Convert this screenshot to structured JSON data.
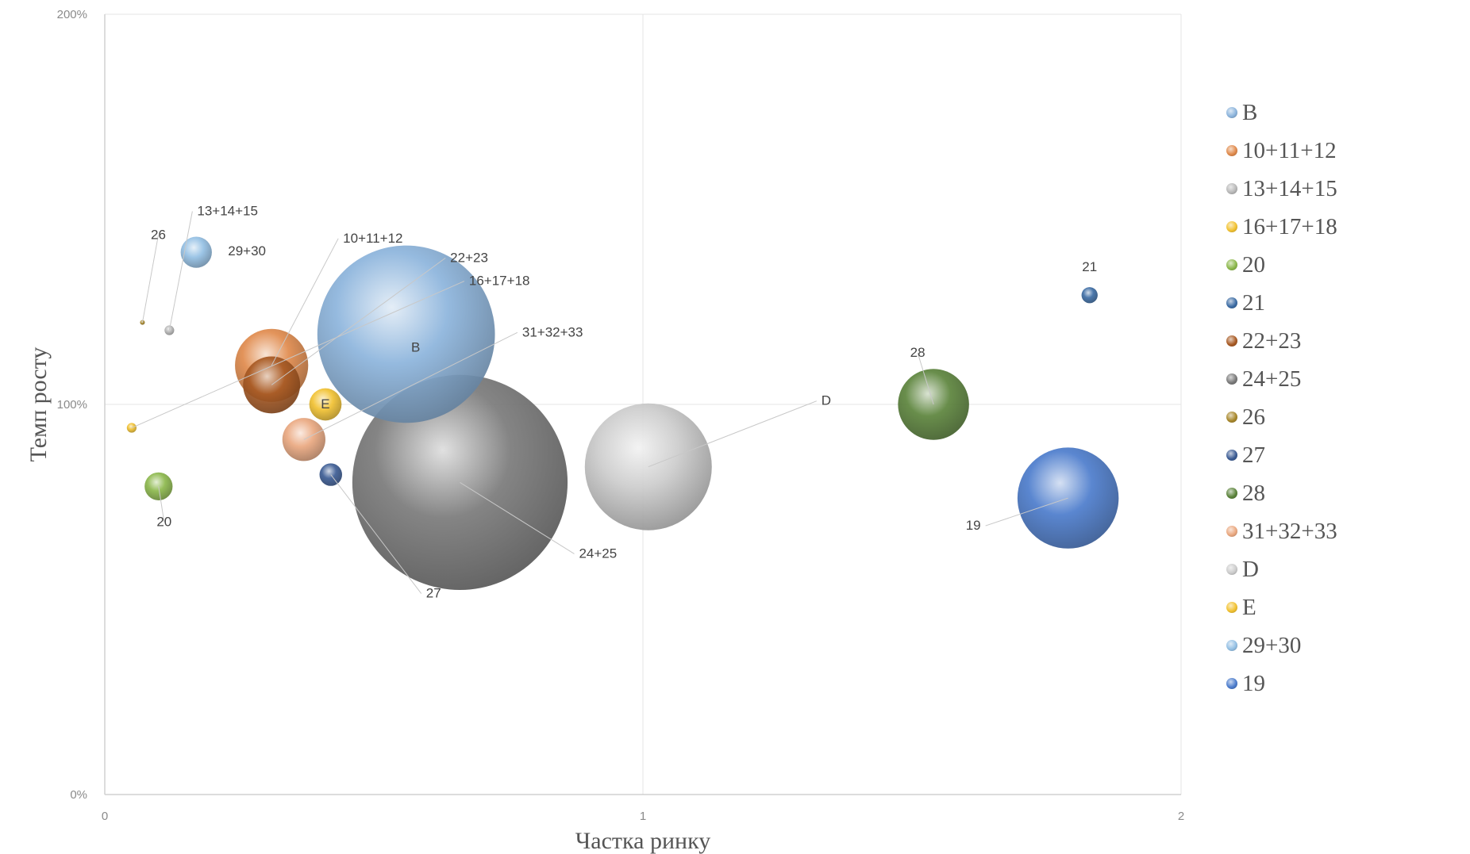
{
  "chart_data": {
    "type": "bubble",
    "xlabel": "Частка ринку",
    "ylabel": "Темп росту",
    "xlim": [
      0,
      2
    ],
    "ylim": [
      0,
      200
    ],
    "x_ticks": [
      "0",
      "1",
      "2"
    ],
    "y_ticks": [
      "0%",
      "100%",
      "200%"
    ],
    "grid": true,
    "legend_position": "right",
    "series": [
      {
        "name": "B",
        "x": 0.56,
        "y": 118,
        "size": 0.165,
        "color": "#8cb4dc",
        "label": "B"
      },
      {
        "name": "10+11+12",
        "x": 0.31,
        "y": 110,
        "size": 0.068,
        "color": "#e08a4c",
        "label": "10+11+12"
      },
      {
        "name": "13+14+15",
        "x": 0.12,
        "y": 119,
        "size": 0.009,
        "color": "#b8b8b8",
        "label": "13+14+15"
      },
      {
        "name": "16+17+18",
        "x": 0.05,
        "y": 94,
        "size": 0.009,
        "color": "#f2c232",
        "label": "16+17+18"
      },
      {
        "name": "20",
        "x": 0.1,
        "y": 79,
        "size": 0.026,
        "color": "#8cb84c",
        "label": "20"
      },
      {
        "name": "21",
        "x": 1.83,
        "y": 128,
        "size": 0.015,
        "color": "#3c6ca4",
        "label": "21"
      },
      {
        "name": "22+23",
        "x": 0.31,
        "y": 105,
        "size": 0.053,
        "color": "#a85a24",
        "label": "22+23"
      },
      {
        "name": "24+25",
        "x": 0.66,
        "y": 80,
        "size": 0.2,
        "color": "#7a7a7a",
        "label": "24+25"
      },
      {
        "name": "26",
        "x": 0.07,
        "y": 121,
        "size": 0.003,
        "color": "#a8882c",
        "label": "26"
      },
      {
        "name": "27",
        "x": 0.42,
        "y": 82,
        "size": 0.021,
        "color": "#3c5c94",
        "label": "27"
      },
      {
        "name": "28",
        "x": 1.54,
        "y": 100,
        "size": 0.066,
        "color": "#5c843c",
        "label": "28"
      },
      {
        "name": "31+32+33",
        "x": 0.37,
        "y": 91,
        "size": 0.04,
        "color": "#eaa880",
        "label": "31+32+33"
      },
      {
        "name": "D",
        "x": 1.01,
        "y": 84,
        "size": 0.118,
        "color": "#cccccc",
        "label": "D"
      },
      {
        "name": "E",
        "x": 0.41,
        "y": 100,
        "size": 0.03,
        "color": "#f2c232",
        "label": "E"
      },
      {
        "name": "29+30",
        "x": 0.17,
        "y": 139,
        "size": 0.029,
        "color": "#94c0e4",
        "label": "29+30"
      },
      {
        "name": "19",
        "x": 1.79,
        "y": 76,
        "size": 0.094,
        "color": "#4c7ccc",
        "label": "19"
      }
    ]
  }
}
